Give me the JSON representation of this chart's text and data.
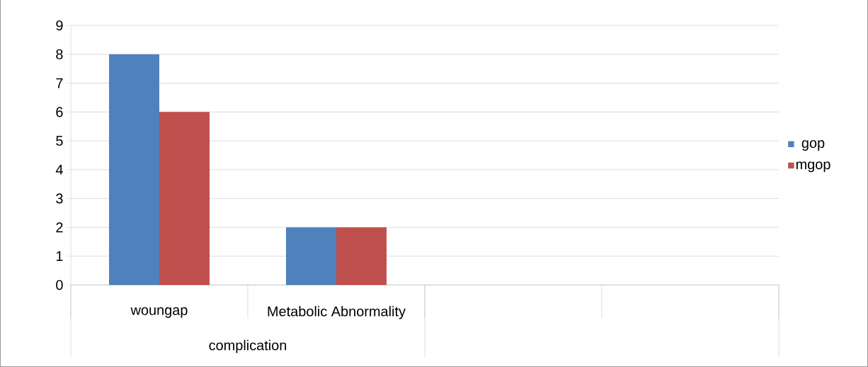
{
  "chart_data": {
    "type": "bar",
    "xlabel": "complication",
    "categories": [
      "woungap",
      "Metabolic Abnormality",
      null,
      null
    ],
    "series": [
      {
        "name": "gop",
        "color": "#4f81bd",
        "values": [
          8,
          2,
          null,
          null
        ]
      },
      {
        "name": "mgop",
        "color": "#c0504d",
        "values": [
          6,
          2,
          null,
          null
        ]
      }
    ],
    "ylim": [
      0,
      9
    ],
    "yticks": [
      0,
      1,
      2,
      3,
      4,
      5,
      6,
      7,
      8,
      9
    ],
    "grid": "y",
    "legend": "right"
  }
}
